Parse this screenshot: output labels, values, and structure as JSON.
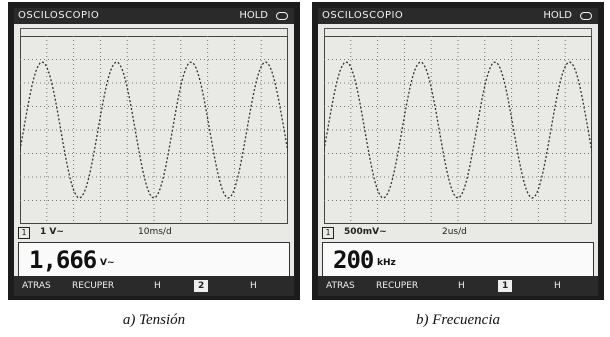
{
  "panels": [
    {
      "header": {
        "title": "OSCILOSCOPIO",
        "status": "HOLD"
      },
      "channel": "1",
      "scale": {
        "volts": "1 V~",
        "time": "10ms/d"
      },
      "reading": {
        "value": "1,666",
        "unit": "V~"
      },
      "menu": [
        "ATRAS",
        "RECUPER",
        "H",
        "2",
        "H"
      ],
      "caption": "a) Tensión"
    },
    {
      "header": {
        "title": "OSCILOSCOPIO",
        "status": "HOLD"
      },
      "channel": "1",
      "scale": {
        "volts": "500mV~",
        "time": "2us/d"
      },
      "reading": {
        "value": "200",
        "unit": "kHz"
      },
      "menu": [
        "ATRAS",
        "RECUPER",
        "H",
        "1",
        "H"
      ],
      "caption": "b) Frecuencia"
    }
  ]
}
